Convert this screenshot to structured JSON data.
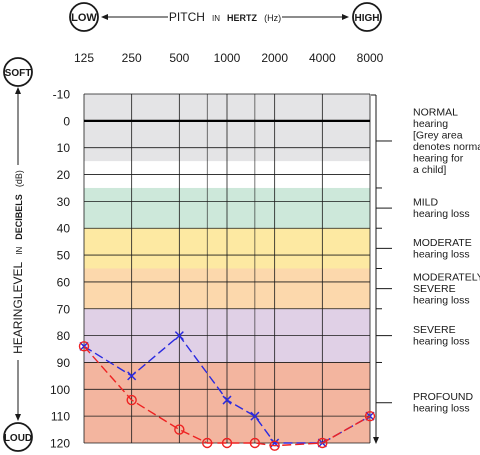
{
  "chart_data": {
    "type": "line",
    "header": {
      "low_label": "LOW",
      "high_label": "HIGH",
      "pitch_prefix": "PITCH",
      "pitch_in": "IN",
      "pitch_unit": "HERTZ",
      "pitch_suffix": "(Hz)"
    },
    "side": {
      "soft_label": "SOFT",
      "loud_label": "LOUD",
      "axis_prefix": "HEARINGLEVEL",
      "axis_in": "IN",
      "axis_unit": "DECIBELS",
      "axis_suffix": "(dB)"
    },
    "x_ticks": [
      "125",
      "250",
      "500",
      "1000",
      "2000",
      "4000",
      "8000"
    ],
    "x_mid_positions": [
      750,
      1500
    ],
    "y_ticks": [
      -10,
      0,
      10,
      20,
      30,
      40,
      50,
      60,
      70,
      80,
      90,
      100,
      110,
      120
    ],
    "ylim": [
      -10,
      120
    ],
    "bands": [
      {
        "from": -10,
        "to": 15,
        "color": "#e4e4e6"
      },
      {
        "from": 25,
        "to": 40,
        "color": "#cde8da"
      },
      {
        "from": 40,
        "to": 55,
        "color": "#fde9a2"
      },
      {
        "from": 55,
        "to": 70,
        "color": "#fcd8ac"
      },
      {
        "from": 70,
        "to": 90,
        "color": "#e0d0e6"
      },
      {
        "from": 90,
        "to": 120,
        "color": "#f3b59f"
      }
    ],
    "categories": [
      {
        "lines": [
          "NORMAL",
          "hearing",
          "[Grey area",
          "denotes normal",
          "hearing for",
          "a child]"
        ],
        "from": -10,
        "to": 25
      },
      {
        "lines": [
          "MILD",
          "hearing loss"
        ],
        "from": 25,
        "to": 40
      },
      {
        "lines": [
          "MODERATE",
          "hearing loss"
        ],
        "from": 40,
        "to": 55
      },
      {
        "lines": [
          "MODERATELY",
          "SEVERE",
          "hearing loss"
        ],
        "from": 55,
        "to": 70
      },
      {
        "lines": [
          "SEVERE",
          "hearing loss"
        ],
        "from": 70,
        "to": 90
      },
      {
        "lines": [
          "PROFOUND",
          "hearing loss"
        ],
        "from": 90,
        "to": 120
      }
    ],
    "series": [
      {
        "color": "#2a2ae0",
        "marker": "x",
        "dash": "dashed",
        "x": [
          125,
          250,
          500,
          1000,
          1500,
          2000,
          4000,
          8000
        ],
        "y": [
          84,
          95,
          80,
          104,
          110,
          120,
          120,
          110
        ]
      },
      {
        "color": "#ee2222",
        "marker": "o",
        "dash": "dashed",
        "x": [
          125,
          250,
          500,
          750,
          1000,
          1500,
          2000,
          4000,
          8000
        ],
        "y": [
          84,
          104,
          115,
          120,
          120,
          120,
          121,
          120,
          110
        ]
      }
    ],
    "colors": {
      "grid": "#1a1a1a",
      "zero_line": "#000000",
      "badge_border": "#1a1a1a",
      "badge_fill": "#ffffff"
    }
  }
}
